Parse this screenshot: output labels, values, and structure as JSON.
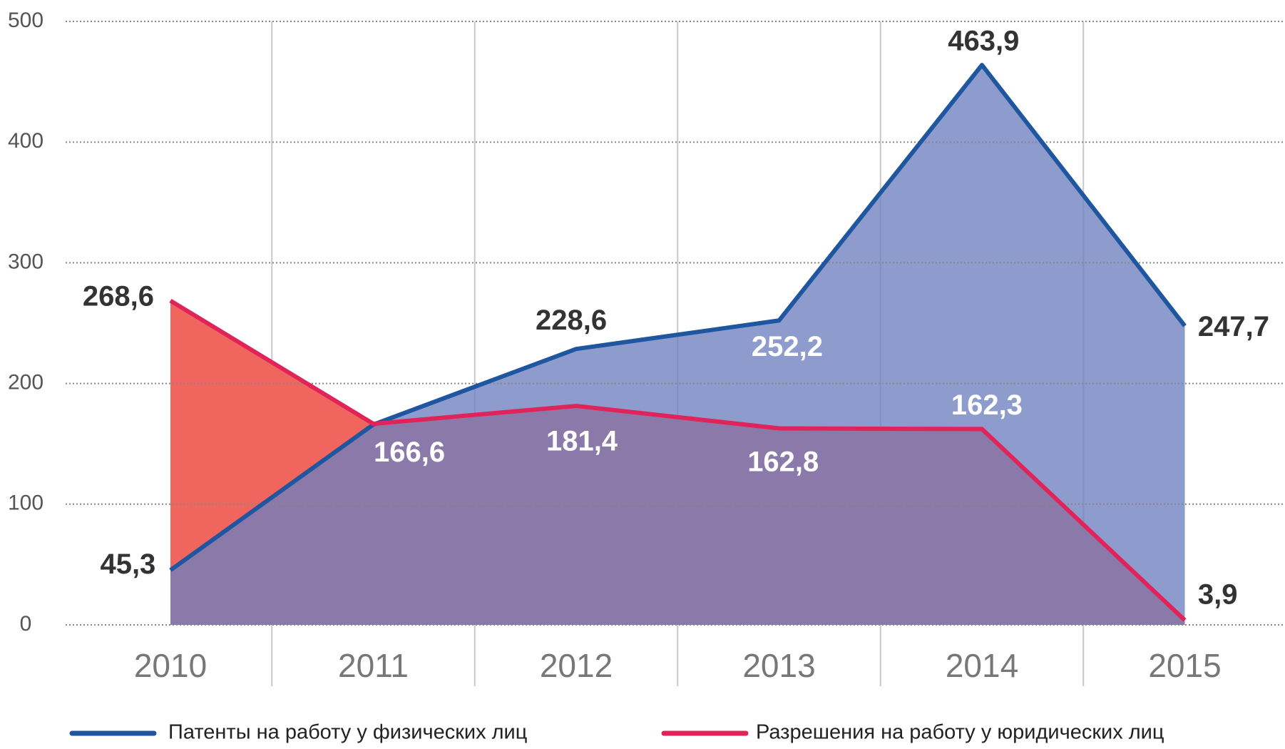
{
  "chart_data": {
    "type": "area",
    "categories": [
      "2010",
      "2011",
      "2012",
      "2013",
      "2014",
      "2015"
    ],
    "series": [
      {
        "name": "Патенты на работу у физических лиц",
        "color": "#1f56a0",
        "area_color": "#6e7fbf",
        "values": [
          45.3,
          166,
          228.6,
          252.2,
          463.9,
          247.7
        ],
        "value_labels": [
          "45,3",
          null,
          "228,6",
          "252,2",
          "463,9",
          "247,7"
        ]
      },
      {
        "name": "Разрешения на работу у юридических лиц",
        "color": "#e0245a",
        "area_color": "#f0665f",
        "values": [
          268.6,
          166.6,
          181.4,
          162.8,
          162.3,
          3.9
        ],
        "value_labels": [
          "268,6",
          "166,6",
          "181,4",
          "162,8",
          "162,3",
          "3,9"
        ]
      }
    ],
    "ylim": [
      0,
      500
    ],
    "yticks": [
      0,
      100,
      200,
      300,
      400,
      500
    ],
    "grid": true
  }
}
